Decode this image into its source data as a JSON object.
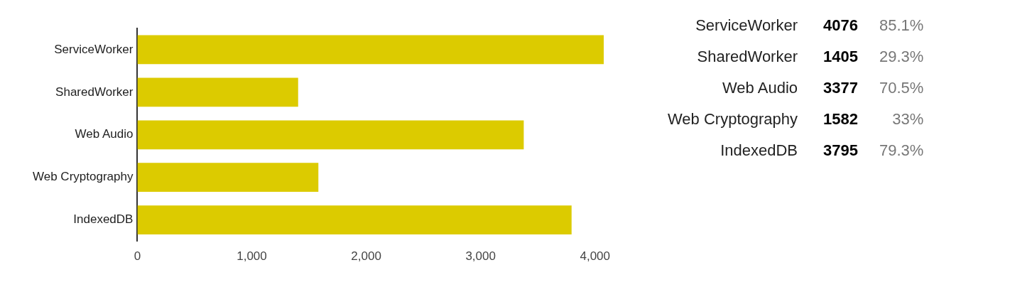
{
  "chart_data": [
    {
      "type": "bar",
      "orientation": "horizontal",
      "categories": [
        "ServiceWorker",
        "SharedWorker",
        "Web Audio",
        "Web Cryptography",
        "IndexedDB"
      ],
      "values": [
        4076,
        1405,
        3377,
        1582,
        3795
      ],
      "color": "#dccb00",
      "xlim": [
        0,
        4076
      ],
      "xticks": [
        0,
        {
          "value": 1000,
          "label": "1,000"
        },
        {
          "value": 2000,
          "label": "2,000"
        },
        {
          "value": 3000,
          "label": "3,000"
        },
        {
          "value": 4000,
          "label": "4,000"
        }
      ],
      "grid": false,
      "legend": false
    },
    {
      "type": "other",
      "categories": [
        "ServiceWorker",
        "SharedWorker",
        "Web Audio",
        "Web Cryptography",
        "IndexedDB"
      ],
      "data_labels": true,
      "series": [
        {
          "values": [
            4076,
            1405,
            3377,
            1582,
            3795
          ]
        },
        {
          "values": [
            85.1,
            29.3,
            70.5,
            33,
            79.3
          ],
          "value_labels": [
            "85.1%",
            "29.3%",
            "70.5%",
            "33%",
            "79.3%"
          ]
        }
      ]
    }
  ]
}
